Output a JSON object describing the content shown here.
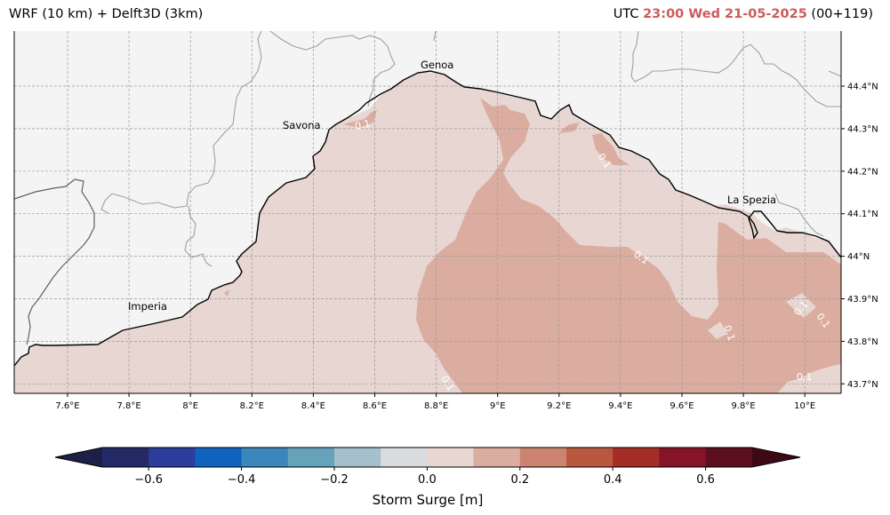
{
  "header": {
    "left_title": "WRF (10 km) + Delft3D (3km)",
    "utc_label": "UTC",
    "time_highlight": "23:00 Wed 21-05-2025",
    "forecast_step": "(00+119)"
  },
  "map": {
    "lon_ticks": [
      "7.6°E",
      "7.8°E",
      "8°E",
      "8.2°E",
      "8.4°E",
      "8.6°E",
      "8.8°E",
      "9°E",
      "9.2°E",
      "9.4°E",
      "9.6°E",
      "9.8°E",
      "10°E"
    ],
    "lat_ticks": [
      "44.4°N",
      "44.3°N",
      "44.2°N",
      "44.1°N",
      "44°N",
      "43.9°N",
      "43.8°N",
      "43.7°N"
    ],
    "cities": [
      "Genoa",
      "Savona",
      "La Spezia",
      "Imperia"
    ],
    "contour_label": "0.1",
    "land_color": "#f4f4f4",
    "sea_color_00_01": "#e8d6d2",
    "sea_color_01_02": "#dbada0",
    "coastline_color": "#000000",
    "border_color": "#a0a0a0"
  },
  "colorbar": {
    "title": "Storm Surge [m]",
    "tick_labels": [
      "−0.6",
      "−0.4",
      "−0.2",
      "0.0",
      "0.2",
      "0.4",
      "0.6"
    ],
    "colors": [
      "#1c2046",
      "#232a66",
      "#2c3d9b",
      "#1062bd",
      "#3b86ba",
      "#66a3ba",
      "#a6c0cb",
      "#dadbdc",
      "#e8d6d2",
      "#dbada0",
      "#cc8470",
      "#ba583f",
      "#a42d28",
      "#851428",
      "#5c0f1e",
      "#3d0a14"
    ]
  }
}
